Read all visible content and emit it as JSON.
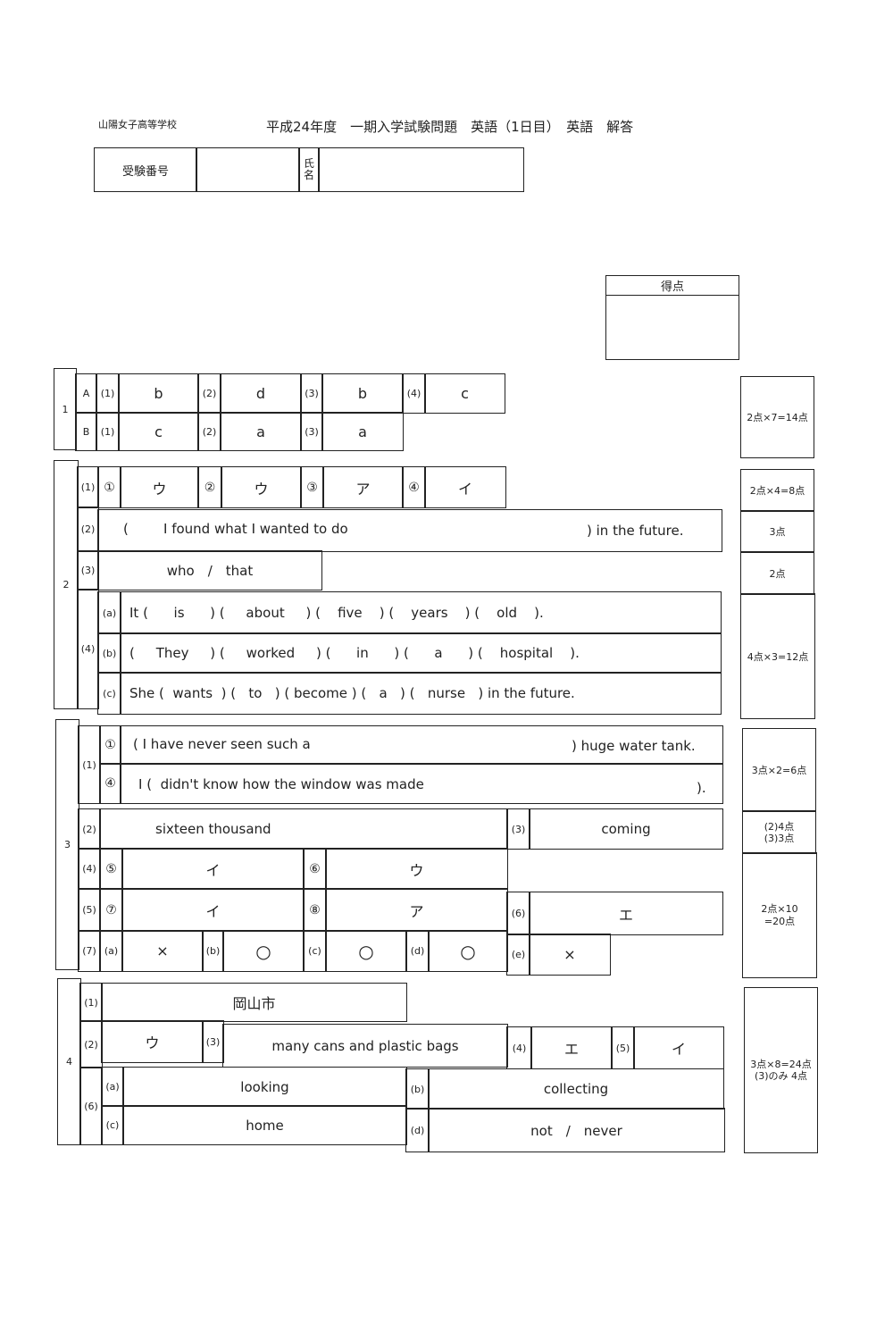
{
  "header": {
    "school": "山陽女子高等学校",
    "title": "平成24年度　一期入学試験問題　英語（1日目）　英語　解答",
    "exam_number_label": "受験番号",
    "name_label": "氏名",
    "score_label": "得点"
  },
  "s1": {
    "num": "1",
    "A": "A",
    "B": "B",
    "l1": "(1)",
    "l2": "(2)",
    "l3": "(3)",
    "l4": "(4)",
    "A1": "b",
    "A2": "d",
    "A3": "b",
    "A4": "c",
    "B1": "c",
    "B2": "a",
    "B3": "a"
  },
  "s2": {
    "num": "2",
    "l1": "(1)",
    "c1": "①",
    "c2": "②",
    "c3": "③",
    "c4": "④",
    "a1": "ウ",
    "a2": "ウ",
    "a3": "ア",
    "a4": "イ",
    "l2": "(2)",
    "q2_open": "(",
    "q2": "I found what I wanted to do",
    "q2_end": ") in the future.",
    "l3": "(3)",
    "q3": "who　/　that",
    "l4": "(4)",
    "la": "(a)",
    "lb": "(b)",
    "lc": "(c)",
    "qa": "It (      is      ) (     about     ) (    five    ) (    years    ) (    old    ).",
    "qb": "(     They     ) (     worked     ) (      in      ) (      a      ) (    hospital    ).",
    "qc": "She (  wants  ) (   to   ) ( become ) (   a   ) (   nurse   ) in the future."
  },
  "s3": {
    "num": "3",
    "l1": "(1)",
    "c1": "①",
    "c4": "④",
    "q1a": "( I have never seen such a",
    "q1a_end": ") huge water tank.",
    "q1b": "I (  didn't know how the window was made",
    "q1b_end": ").",
    "l2": "(2)",
    "a2": "sixteen thousand",
    "l3": "(3)",
    "a3": "coming",
    "l4": "(4)",
    "c5": "⑤",
    "a5": "イ",
    "c6": "⑥",
    "a6": "ウ",
    "l5": "(5)",
    "c7": "⑦",
    "a7": "イ",
    "c8": "⑧",
    "a8": "ア",
    "l6": "(6)",
    "a_6": "エ",
    "l7": "(7)",
    "la": "(a)",
    "aa": "×",
    "lb": "(b)",
    "ab": "○",
    "lc": "(c)",
    "ac": "○",
    "ld": "(d)",
    "ad": "○",
    "le": "(e)",
    "ae": "×"
  },
  "s4": {
    "num": "4",
    "l1": "(1)",
    "a1": "岡山市",
    "l2": "(2)",
    "a2": "ウ",
    "l3": "(3)",
    "a3": "many cans and plastic bags",
    "l4": "(4)",
    "a4": "エ",
    "l5": "(5)",
    "a5": "イ",
    "l6": "(6)",
    "la": "(a)",
    "aa": "looking",
    "lb": "(b)",
    "ab": "collecting",
    "lc": "(c)",
    "ac": "home",
    "ld": "(d)",
    "ad": "not　/　never"
  },
  "scores": {
    "s1": "2点×7=14点",
    "s2_1": "2点×4=8点",
    "s2_2": "3点",
    "s2_3": "2点",
    "s2_4": "4点×3=12点",
    "s3_1": "3点×2=6点",
    "s3_23a": "(2)4点",
    "s3_23b": "(3)3点",
    "s3_4a": "2点×10",
    "s3_4b": "=20点",
    "s4a": "3点×8=24点",
    "s4b": "(3)のみ 4点"
  }
}
